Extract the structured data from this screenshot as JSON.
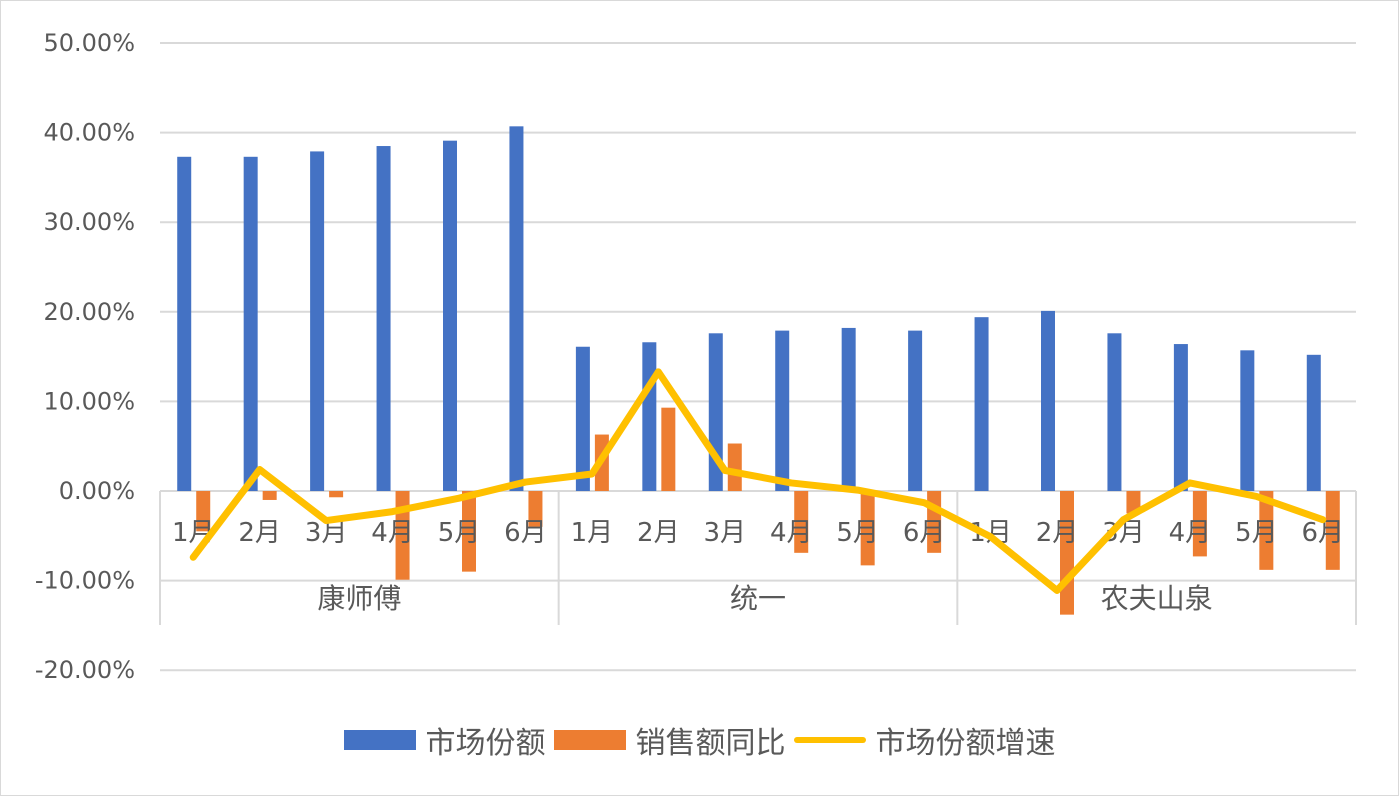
{
  "chart_data": {
    "type": "bar",
    "title": "",
    "xlabel": "",
    "ylabel": "",
    "ylim": [
      -0.2,
      0.5
    ],
    "yticks": [
      "50.00%",
      "40.00%",
      "30.00%",
      "20.00%",
      "10.00%",
      "0.00%",
      "-10.00%",
      "-20.00%"
    ],
    "ytick_values": [
      0.5,
      0.4,
      0.3,
      0.2,
      0.1,
      0,
      -0.1,
      -0.2
    ],
    "grid": true,
    "legend_position": "bottom",
    "groups": [
      "康师傅",
      "统一",
      "农夫山泉"
    ],
    "months": [
      "1月",
      "2月",
      "3月",
      "4月",
      "5月",
      "6月"
    ],
    "categories": [
      "康师傅 1月",
      "康师傅 2月",
      "康师傅 3月",
      "康师傅 4月",
      "康师傅 5月",
      "康师傅 6月",
      "统一 1月",
      "统一 2月",
      "统一 3月",
      "统一 4月",
      "统一 5月",
      "统一 6月",
      "农夫山泉 1月",
      "农夫山泉 2月",
      "农夫山泉 3月",
      "农夫山泉 4月",
      "农夫山泉 5月",
      "农夫山泉 6月"
    ],
    "series": [
      {
        "name": "市场份额",
        "type": "bar",
        "color": "#4472C4",
        "values": [
          0.373,
          0.373,
          0.379,
          0.385,
          0.391,
          0.407,
          0.161,
          0.166,
          0.176,
          0.179,
          0.182,
          0.179,
          0.194,
          0.201,
          0.176,
          0.164,
          0.157,
          0.152
        ]
      },
      {
        "name": "销售额同比",
        "type": "bar",
        "color": "#ED7D31",
        "values": [
          -0.045,
          -0.01,
          -0.007,
          -0.099,
          -0.09,
          -0.04,
          0.063,
          0.093,
          0.053,
          -0.069,
          -0.083,
          -0.069,
          0.0,
          -0.138,
          -0.025,
          -0.073,
          -0.088,
          -0.088
        ]
      },
      {
        "name": "市场份额增速",
        "type": "line",
        "color": "#FFC000",
        "values": [
          -0.074,
          0.024,
          -0.033,
          -0.023,
          -0.008,
          0.01,
          0.019,
          0.133,
          0.023,
          0.009,
          0.001,
          -0.013,
          -0.051,
          -0.111,
          -0.032,
          0.009,
          -0.006,
          -0.032
        ]
      }
    ]
  },
  "legend": [
    {
      "label": "市场份额",
      "color": "#4472C4",
      "kind": "bar"
    },
    {
      "label": "销售额同比",
      "color": "#ED7D31",
      "kind": "bar"
    },
    {
      "label": "市场份额增速",
      "color": "#FFC000",
      "kind": "line"
    }
  ]
}
